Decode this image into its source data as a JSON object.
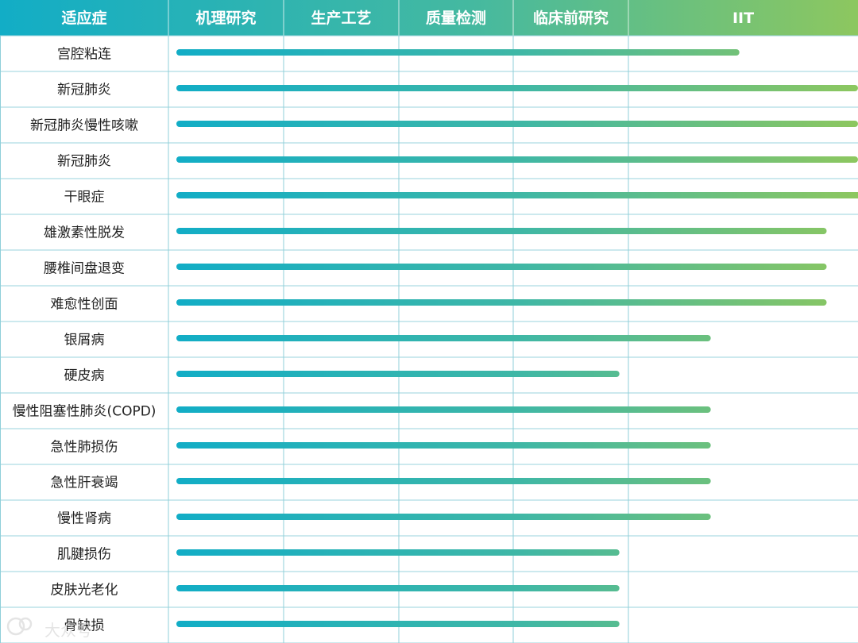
{
  "chart_data": {
    "type": "bar",
    "orientation": "horizontal",
    "row_header": "适应症",
    "stages": [
      "机理研究",
      "生产工艺",
      "质量检测",
      "临床前研究",
      "IIT"
    ],
    "categories": [
      "宫腔粘连",
      "新冠肺炎",
      "新冠肺炎慢性咳嗽",
      "新冠肺炎",
      "干眼症",
      "雄激素性脱发",
      "腰椎间盘退变",
      "难愈性创面",
      "银屑病",
      "硬皮病",
      "慢性阻塞性肺炎(COPD)",
      "急性肺损伤",
      "急性肝衰竭",
      "慢性肾病",
      "肌腱损伤",
      "皮肤光老化",
      "骨缺损"
    ],
    "values": [
      4.13,
      5,
      5,
      5,
      5.05,
      4.77,
      4.77,
      4.77,
      3.92,
      3.25,
      3.92,
      3.92,
      3.92,
      3.92,
      3.25,
      3.25,
      3.25
    ],
    "xlim": [
      0,
      5
    ],
    "colors": {
      "gradient_start": "#12adc6",
      "gradient_end": "#8dc75f",
      "grid": "#8fcfd9",
      "label_text": "#222222"
    },
    "grid": true,
    "legend": "none"
  },
  "watermark": {
    "text": "大众号"
  }
}
